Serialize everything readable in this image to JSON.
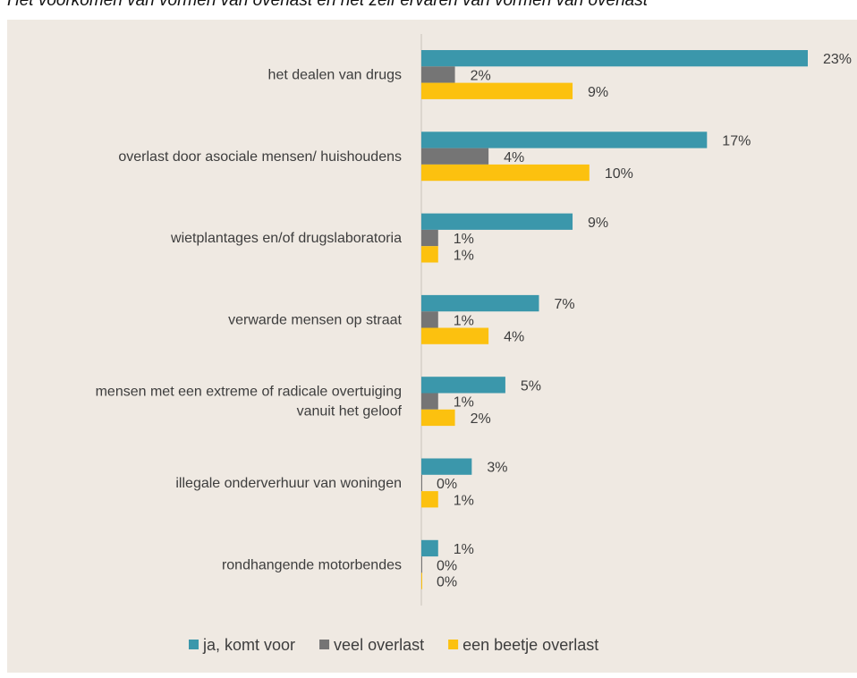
{
  "chart_data": {
    "type": "bar",
    "orientation": "horizontal",
    "title": "Het voorkomen van vormen van overlast en het zelf ervaren van vormen van overlast",
    "categories": [
      [
        "het dealen van drugs"
      ],
      [
        "overlast door asociale mensen/ huishoudens"
      ],
      [
        "wietplantages en/of drugslaboratoria"
      ],
      [
        "verwarde mensen op straat"
      ],
      [
        "mensen met een extreme of radicale overtuiging",
        "vanuit het geloof"
      ],
      [
        "illegale onderverhuur van woningen"
      ],
      [
        "rondhangende motorbendes"
      ]
    ],
    "series": [
      {
        "name": "ja, komt voor",
        "color": "#3b97ab",
        "values": [
          23,
          17,
          9,
          7,
          5,
          3,
          1
        ],
        "labels": [
          "23%",
          "17%",
          "9%",
          "7%",
          "5%",
          "3%",
          "1%"
        ]
      },
      {
        "name": "veel overlast",
        "color": "#757575",
        "values": [
          2,
          4,
          1,
          1,
          1,
          0,
          0
        ],
        "labels": [
          "2%",
          "4%",
          "1%",
          "1%",
          "1%",
          "0%",
          "0%"
        ]
      },
      {
        "name": "een beetje overlast",
        "color": "#fcc10f",
        "values": [
          9,
          10,
          1,
          4,
          2,
          1,
          0
        ],
        "labels": [
          "9%",
          "10%",
          "1%",
          "4%",
          "2%",
          "1%",
          "0%"
        ]
      }
    ],
    "xlim": [
      0,
      23
    ],
    "legend": "bottom",
    "grid": false
  }
}
